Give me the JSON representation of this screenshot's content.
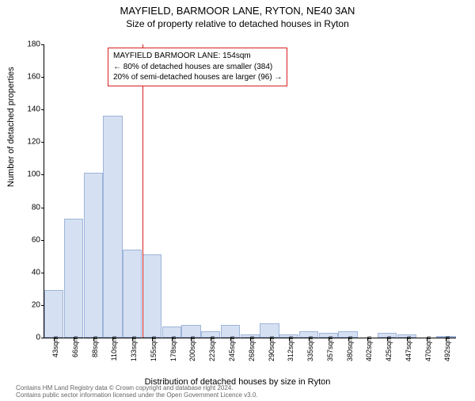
{
  "title": "MAYFIELD, BARMOOR LANE, RYTON, NE40 3AN",
  "subtitle": "Size of property relative to detached houses in Ryton",
  "ylabel": "Number of detached properties",
  "xlabel": "Distribution of detached houses by size in Ryton",
  "ylim": [
    0,
    180
  ],
  "ytick_step": 20,
  "bar_fill": "#d5e0f2",
  "bar_stroke": "#9fb4d9",
  "ref_line_color": "#d62020",
  "ref_line_x_index": 5,
  "annotation_border": "#d62020",
  "annotation_lines": [
    "MAYFIELD BARMOOR LANE: 154sqm",
    "← 80% of detached houses are smaller (384)",
    "20% of semi-detached houses are larger (96) →"
  ],
  "x_labels": [
    "43sqm",
    "66sqm",
    "88sqm",
    "110sqm",
    "133sqm",
    "155sqm",
    "178sqm",
    "200sqm",
    "223sqm",
    "245sqm",
    "268sqm",
    "290sqm",
    "312sqm",
    "335sqm",
    "357sqm",
    "380sqm",
    "402sqm",
    "425sqm",
    "447sqm",
    "470sqm",
    "492sqm"
  ],
  "values": [
    29,
    73,
    101,
    136,
    54,
    51,
    7,
    8,
    4,
    8,
    2,
    9,
    2,
    4,
    3,
    4,
    0,
    3,
    2,
    0,
    1
  ],
  "footer1": "Contains HM Land Registry data © Crown copyright and database right 2024.",
  "footer2": "Contains public sector information licensed under the Open Government Licence v3.0.",
  "title_fontsize": 13,
  "subtitle_fontsize": 12,
  "label_fontsize": 11,
  "tick_fontsize": 10,
  "background_color": "#ffffff"
}
